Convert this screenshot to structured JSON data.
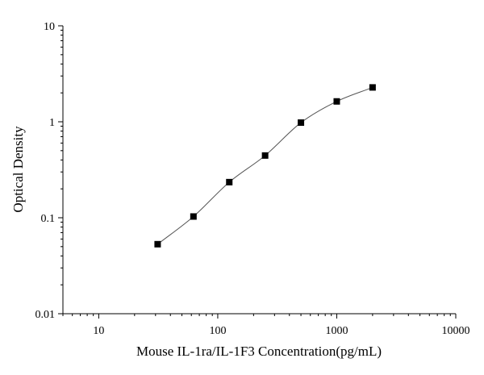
{
  "chart_data": {
    "type": "scatter",
    "title": "",
    "xlabel": "Mouse IL-1ra/IL-1F3 Concentration(pg/mL)",
    "ylabel": "Optical Density",
    "x_scale": "log",
    "y_scale": "log",
    "xlim": [
      5,
      10000
    ],
    "ylim": [
      0.01,
      10
    ],
    "x_ticks": [
      10,
      100,
      1000,
      10000
    ],
    "x_tick_labels": [
      "10",
      "100",
      "1000",
      "10000"
    ],
    "y_ticks": [
      0.01,
      0.1,
      1,
      10
    ],
    "y_tick_labels": [
      "0.01",
      "0.1",
      "1",
      "10"
    ],
    "grid": false,
    "legend": "none",
    "series": [
      {
        "marker": "square",
        "color": "#000000",
        "x": [
          31.25,
          62.5,
          125,
          250,
          500,
          1000,
          2000
        ],
        "y": [
          0.053,
          0.103,
          0.235,
          0.445,
          0.98,
          1.63,
          2.28
        ]
      }
    ],
    "fit_curve": {
      "type": "four-parameter-logistic",
      "color": "#555555"
    }
  }
}
